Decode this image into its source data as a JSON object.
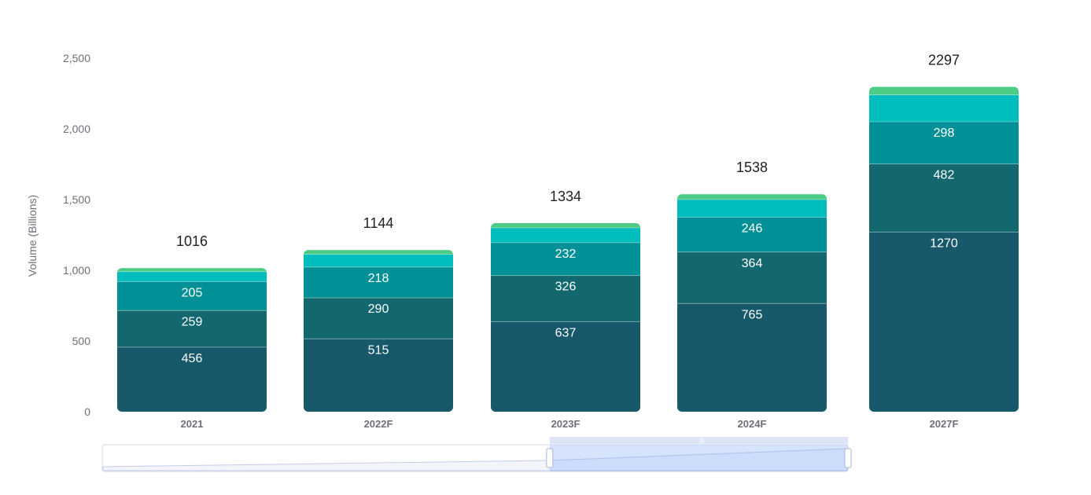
{
  "chart_data": {
    "type": "bar",
    "stacked": true,
    "title": "",
    "xlabel": "",
    "ylabel": "Volume (Billions)",
    "ylim": [
      0,
      2500
    ],
    "yticks": [
      0,
      500,
      1000,
      1500,
      2000,
      2500
    ],
    "ytick_labels": [
      "0",
      "500",
      "1,000",
      "1,500",
      "2,000",
      "2,500"
    ],
    "grid": false,
    "legend": "none",
    "categories": [
      "2021",
      "2022F",
      "2023F",
      "2024F",
      "2027F"
    ],
    "totals": [
      1016,
      1144,
      1334,
      1538,
      2297
    ],
    "series": [
      {
        "values": [
          456,
          515,
          637,
          765,
          1270
        ],
        "color": "#17596b",
        "show_labels": true
      },
      {
        "values": [
          259,
          290,
          326,
          364,
          482
        ],
        "color": "#13676f",
        "show_labels": true
      },
      {
        "values": [
          205,
          218,
          232,
          246,
          298
        ],
        "color": "#009095",
        "show_labels": true
      },
      {
        "values": [
          70,
          90,
          105,
          125,
          190
        ],
        "color": "#00bdbd",
        "show_labels": false
      },
      {
        "values": [
          26,
          31,
          34,
          38,
          57
        ],
        "color": "#4ccb85",
        "show_labels": false
      }
    ],
    "zoom_slider": {
      "start_fraction": 0.6,
      "end_fraction": 1.0
    }
  }
}
